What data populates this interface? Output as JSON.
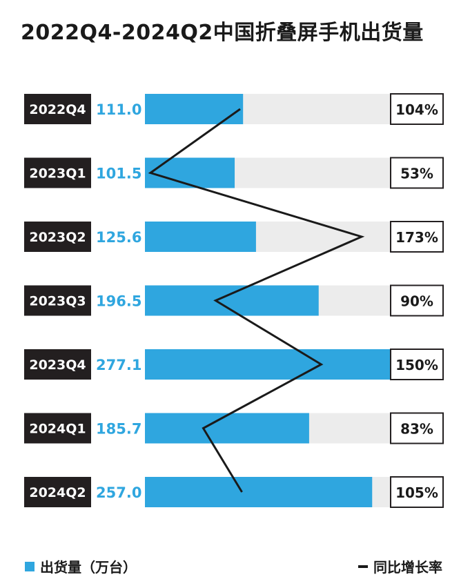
{
  "title": "2022Q4-2024Q2中国折叠屏手机出货量",
  "legend": {
    "shipments": "出货量（万台）",
    "growth": "同比增长率"
  },
  "colors": {
    "bar": "#2fa6df",
    "track": "#ececec",
    "label_bg": "#231f20",
    "value_text": "#2fa6df",
    "line": "#1a1a1a"
  },
  "chart_data": {
    "type": "bar",
    "orientation": "horizontal",
    "categories": [
      "2022Q4",
      "2023Q1",
      "2023Q2",
      "2023Q3",
      "2023Q4",
      "2024Q1",
      "2024Q2"
    ],
    "series": [
      {
        "name": "出货量（万台）",
        "values": [
          111.0,
          101.5,
          125.6,
          196.5,
          277.1,
          185.7,
          257.0
        ],
        "value_labels": [
          "111.0",
          "101.5",
          "125.6",
          "196.5",
          "277.1",
          "185.7",
          "257.0"
        ]
      },
      {
        "name": "同比增长率",
        "type": "line",
        "values": [
          104,
          53,
          173,
          90,
          150,
          83,
          105
        ],
        "value_labels": [
          "104%",
          "53%",
          "173%",
          "90%",
          "150%",
          "83%",
          "105%"
        ]
      }
    ],
    "xlim": [
      0,
      277.1
    ],
    "grid": false,
    "legend_position": "bottom"
  }
}
